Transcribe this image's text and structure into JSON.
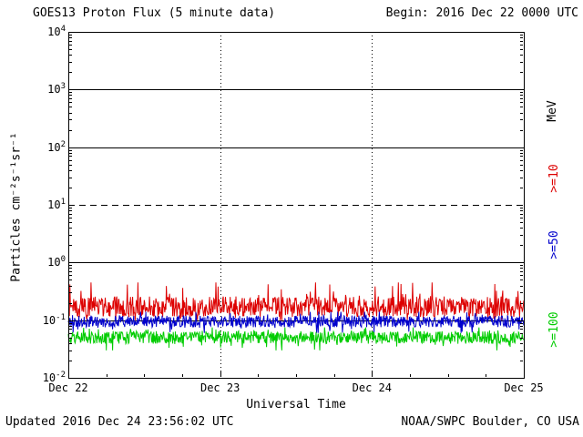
{
  "header": {
    "title": "GOES13 Proton Flux (5 minute data)",
    "begin_label": "Begin: 2016 Dec 22 0000 UTC"
  },
  "footer": {
    "updated": "Updated 2016 Dec 24 23:56:02 UTC",
    "source": "NOAA/SWPC Boulder, CO USA"
  },
  "chart_data": {
    "type": "line",
    "title": "GOES13 Proton Flux (5 minute data)",
    "xlabel": "Universal Time",
    "ylabel": "Particles cm⁻²s⁻¹sr⁻¹",
    "right_axis_unit": "MeV",
    "y_scale": "log",
    "y_exponent_range": [
      -2,
      4
    ],
    "y_tick_exponents": [
      4,
      3,
      2,
      1,
      0,
      -1,
      -2
    ],
    "x_tick_labels": [
      "Dec 22",
      "Dec 23",
      "Dec 24",
      "Dec 25"
    ],
    "x_days_span": 3,
    "points_per_day": 288,
    "solid_gridline_levels": [
      1000,
      100,
      1,
      0.1
    ],
    "dashed_gridline_levels": [
      10
    ],
    "vertical_gridline_days": [
      1,
      2
    ],
    "series": [
      {
        "name": ">=10",
        "color": "#dd0000",
        "typical_flux": 0.17,
        "flux_min": 0.1,
        "flux_max": 0.45
      },
      {
        "name": ">=50",
        "color": "#0000cc",
        "typical_flux": 0.095,
        "flux_min": 0.06,
        "flux_max": 0.14
      },
      {
        "name": ">=100",
        "color": "#00cc00",
        "typical_flux": 0.05,
        "flux_min": 0.03,
        "flux_max": 0.075
      }
    ]
  }
}
